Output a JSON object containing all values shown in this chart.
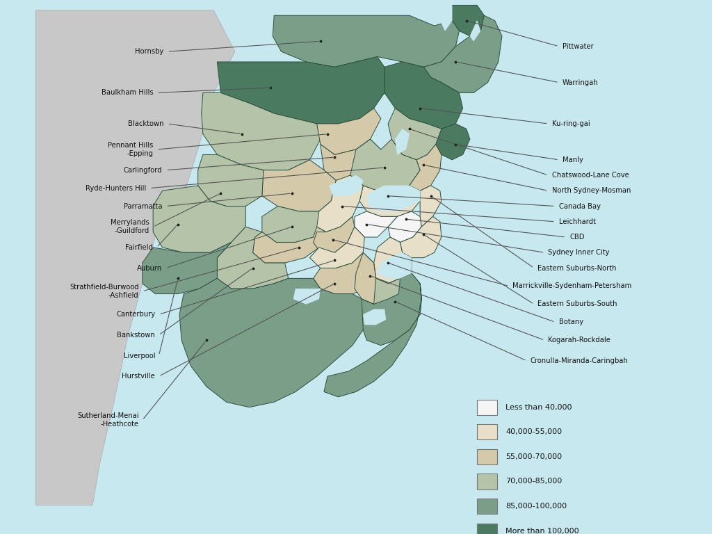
{
  "title": "",
  "background_ocean": "#c8e8f0",
  "outer_land_color": "#c8c8c8",
  "border_color": "#2a5040",
  "water_color": "#c8e8f0",
  "legend_items": [
    {
      "label": "Less than 40,000",
      "color": "#f5f5f5"
    },
    {
      "label": "40,000-55,000",
      "color": "#e8dfc8"
    },
    {
      "label": "55,000-70,000",
      "color": "#d4c9a8"
    },
    {
      "label": "70,000-85,000",
      "color": "#b5c4a8"
    },
    {
      "label": "85,000-100,000",
      "color": "#7a9e88"
    },
    {
      "label": "More than 100,000",
      "color": "#4a7a60"
    }
  ]
}
